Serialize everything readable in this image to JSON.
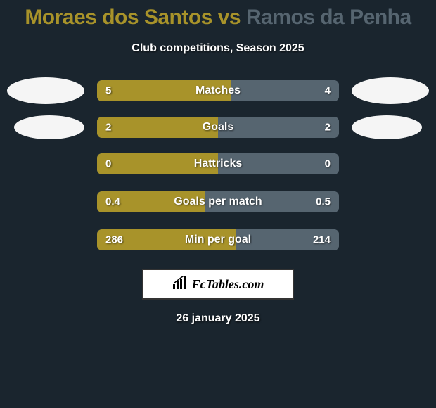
{
  "title": {
    "player1": "Moraes dos Santos",
    "vs": " vs ",
    "player2": "Ramos da Penha",
    "player1_color": "#a8932a",
    "player2_color": "#566570"
  },
  "subtitle": "Club competitions, Season 2025",
  "bar_colors": {
    "left": "#a8932a",
    "right": "#566570",
    "right_accent": "#495560"
  },
  "rows": [
    {
      "label": "Matches",
      "left_val": "5",
      "right_val": "4",
      "left_pct": 55.6,
      "right_pct": 44.4,
      "show_avatars": true
    },
    {
      "label": "Goals",
      "left_val": "2",
      "right_val": "2",
      "left_pct": 50,
      "right_pct": 50,
      "show_avatars": true,
      "avatar_narrow": true
    },
    {
      "label": "Hattricks",
      "left_val": "0",
      "right_val": "0",
      "left_pct": 50,
      "right_pct": 50,
      "show_avatars": false
    },
    {
      "label": "Goals per match",
      "left_val": "0.4",
      "right_val": "0.5",
      "left_pct": 44.4,
      "right_pct": 55.6,
      "show_avatars": false
    },
    {
      "label": "Min per goal",
      "left_val": "286",
      "right_val": "214",
      "left_pct": 57.2,
      "right_pct": 42.8,
      "show_avatars": false
    }
  ],
  "logo": {
    "text": "FcTables.com"
  },
  "date": "26 january 2025"
}
